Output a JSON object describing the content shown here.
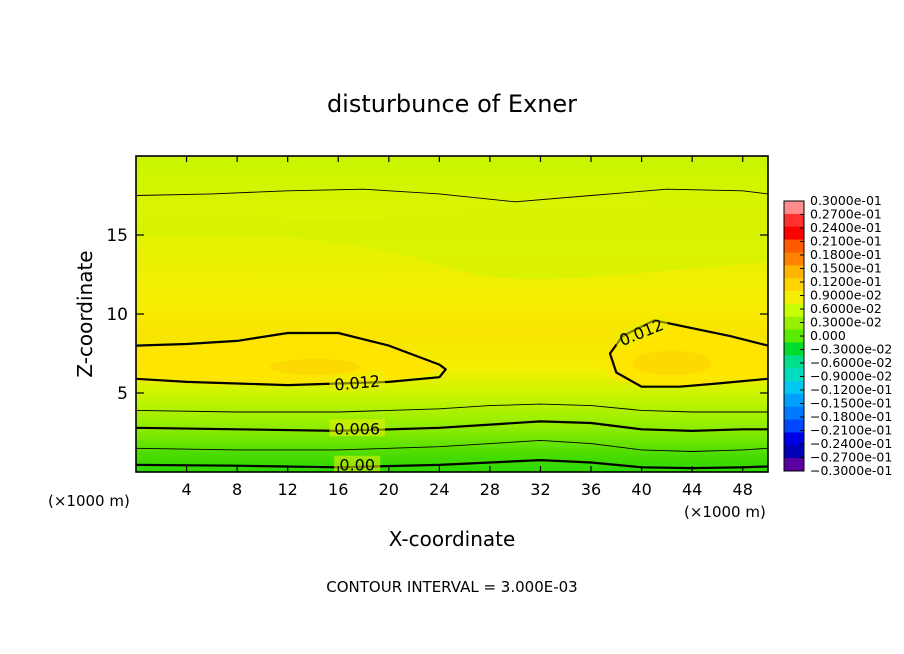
{
  "chart_data": {
    "type": "heatmap",
    "title": "disturbunce of Exner",
    "xlabel": "X-coordinate",
    "ylabel": "Z-coordinate",
    "x_unit": "(×1000 m)",
    "x_unit_right": "(×1000 m)",
    "xlim": [
      0,
      50
    ],
    "ylim": [
      0,
      20
    ],
    "x_ticks": [
      4,
      8,
      12,
      16,
      20,
      24,
      28,
      32,
      36,
      40,
      44,
      48
    ],
    "y_ticks": [
      5,
      10,
      15
    ],
    "contour_interval_text": "CONTOUR INTERVAL = 3.000E-03",
    "contour_interval": 0.003,
    "contour_labels": [
      {
        "text": "0.012",
        "x": 17.5,
        "z": 5.6,
        "angle": -5
      },
      {
        "text": "0.012",
        "x": 40.0,
        "z": 8.8,
        "angle": -22
      },
      {
        "text": "0.006",
        "x": 17.5,
        "z": 2.7,
        "angle": 0
      },
      {
        "text": "0.00",
        "x": 17.5,
        "z": 0.4,
        "angle": 0
      }
    ],
    "bold_contours": [
      {
        "level": 0.012,
        "x": [
          0,
          4,
          8,
          12,
          16,
          20,
          24,
          24.5,
          24,
          20,
          16,
          12,
          8,
          4,
          0
        ],
        "z": [
          8.0,
          8.1,
          8.3,
          8.8,
          8.8,
          8.0,
          6.8,
          6.5,
          6.0,
          5.7,
          5.6,
          5.5,
          5.6,
          5.7,
          5.9
        ]
      },
      {
        "level": 0.012,
        "x": [
          50,
          47,
          44,
          41,
          38.5,
          37.5,
          38,
          40,
          43,
          46,
          50
        ],
        "z": [
          8.0,
          8.6,
          9.1,
          9.6,
          8.6,
          7.5,
          6.3,
          5.4,
          5.4,
          5.6,
          5.9
        ]
      },
      {
        "level": 0.006,
        "x": [
          0,
          8,
          16,
          24,
          28,
          32,
          36,
          40,
          44,
          48,
          50
        ],
        "z": [
          2.8,
          2.7,
          2.6,
          2.8,
          3.0,
          3.2,
          3.1,
          2.7,
          2.6,
          2.7,
          2.7
        ]
      },
      {
        "level": 0.0,
        "x": [
          0,
          8,
          16,
          24,
          28,
          32,
          36,
          40,
          44,
          48,
          50
        ],
        "z": [
          0.45,
          0.4,
          0.3,
          0.45,
          0.6,
          0.75,
          0.6,
          0.3,
          0.25,
          0.3,
          0.35
        ]
      }
    ],
    "thin_contours": [
      {
        "x": [
          0,
          6,
          12,
          18,
          24,
          30,
          36,
          42,
          48,
          50
        ],
        "z": [
          17.5,
          17.6,
          17.8,
          17.9,
          17.6,
          17.1,
          17.5,
          17.9,
          17.8,
          17.6
        ]
      },
      {
        "x": [
          0,
          8,
          16,
          24,
          28,
          32,
          36,
          40,
          44,
          48,
          50
        ],
        "z": [
          3.9,
          3.8,
          3.8,
          4.0,
          4.2,
          4.3,
          4.2,
          3.9,
          3.8,
          3.8,
          3.8
        ]
      },
      {
        "x": [
          0,
          8,
          16,
          24,
          28,
          32,
          36,
          40,
          44,
          48,
          50
        ],
        "z": [
          1.5,
          1.4,
          1.4,
          1.6,
          1.8,
          2.0,
          1.8,
          1.4,
          1.3,
          1.4,
          1.5
        ]
      }
    ],
    "colorbar": {
      "labels": [
        "0.3000e-01",
        "0.2700e-01",
        "0.2400e-01",
        "0.2100e-01",
        "0.1800e-01",
        "0.1500e-01",
        "0.1200e-01",
        "0.9000e-02",
        "0.6000e-02",
        "0.3000e-02",
        "0.000",
        "−0.3000e-02",
        "−0.6000e-02",
        "−0.9000e-02",
        "−0.1200e-01",
        "−0.1500e-01",
        "−0.1800e-01",
        "−0.2100e-01",
        "−0.2400e-01",
        "−0.2700e-01",
        "−0.3000e-01"
      ],
      "colors": [
        "#ff8c8c",
        "#ff3030",
        "#ff0000",
        "#ff5a00",
        "#ff8200",
        "#ffb400",
        "#ffd500",
        "#f5f000",
        "#c8ff00",
        "#96f000",
        "#5aeb00",
        "#00dc2d",
        "#00e08c",
        "#00dcc0",
        "#00c8f0",
        "#00a0ff",
        "#0078ff",
        "#0046ff",
        "#0000e6",
        "#0000b4",
        "#5a00a0"
      ]
    }
  }
}
